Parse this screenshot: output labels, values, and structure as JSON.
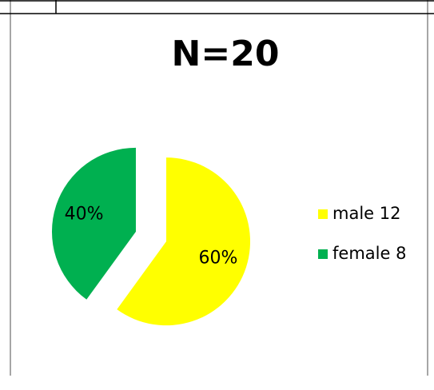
{
  "chart_data": {
    "type": "pie",
    "title": "N=20",
    "categories": [
      "male 12",
      "female 8"
    ],
    "values": [
      60,
      40
    ],
    "value_labels": [
      "60%",
      "40%"
    ],
    "colors": [
      "#ffff00",
      "#00b050"
    ],
    "legend": "right"
  }
}
